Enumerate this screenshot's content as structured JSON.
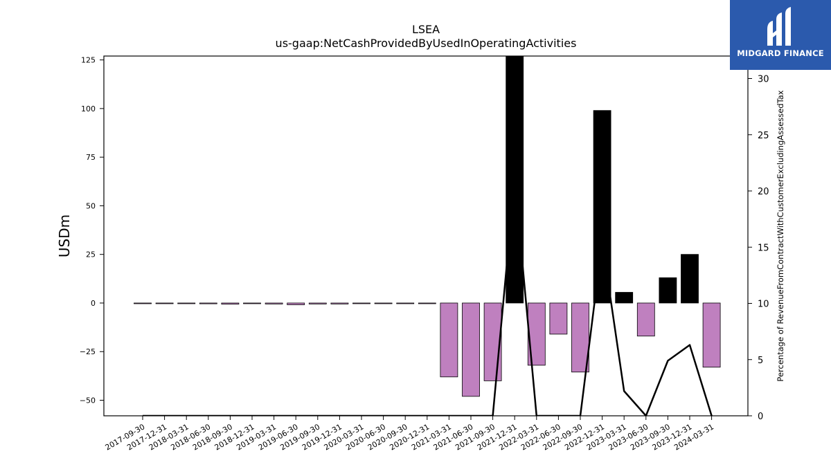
{
  "chart_data": {
    "type": "bar",
    "title": "LSEA",
    "subtitle": "us-gaap:NetCashProvidedByUsedInOperatingActivities",
    "ylabel": "USDm",
    "y2label": "Percentage of RevenueFromContractWithCustomerExcludingAssessedTax",
    "ylim": [
      -58,
      127
    ],
    "y2lim": [
      0,
      32
    ],
    "yticks": [
      -50,
      -25,
      0,
      25,
      50,
      75,
      100,
      125
    ],
    "y2ticks": [
      0,
      5,
      10,
      15,
      20,
      25,
      30
    ],
    "categories": [
      "2017-09-30",
      "2017-12-31",
      "2018-03-31",
      "2018-06-30",
      "2018-09-30",
      "2018-12-31",
      "2019-03-31",
      "2019-06-30",
      "2019-09-30",
      "2019-12-31",
      "2020-03-31",
      "2020-06-30",
      "2020-09-30",
      "2020-12-31",
      "2021-03-31",
      "2021-06-30",
      "2021-09-30",
      "2021-12-31",
      "2022-03-31",
      "2022-06-30",
      "2022-09-30",
      "2022-12-31",
      "2023-03-31",
      "2023-06-30",
      "2023-09-30",
      "2023-12-31",
      "2024-03-31"
    ],
    "series": [
      {
        "type": "bar",
        "values": [
          -0.2,
          -0.3,
          -0.3,
          -0.4,
          -0.6,
          -0.3,
          -0.5,
          -0.9,
          -0.5,
          -0.5,
          -0.2,
          -0.2,
          -0.2,
          -0.2,
          -38,
          -48,
          -40,
          127,
          -32,
          -16,
          -35.5,
          99,
          5.5,
          -17,
          13,
          25,
          -33
        ],
        "color_negative": "#bf80bf",
        "color_positive": "#000000"
      },
      {
        "type": "line",
        "axis": "y2",
        "color": "#000000",
        "values": [
          0,
          0,
          0,
          0,
          0,
          0,
          0,
          0,
          0,
          0,
          0,
          0,
          0,
          0,
          0,
          0,
          0,
          21,
          0,
          0,
          0,
          15.5,
          2.2,
          0,
          4.9,
          6.3,
          0
        ]
      }
    ],
    "grid": false,
    "legend": "none"
  },
  "logo": {
    "text": "MIDGARD FINANCE",
    "color": "#2b5aad"
  }
}
